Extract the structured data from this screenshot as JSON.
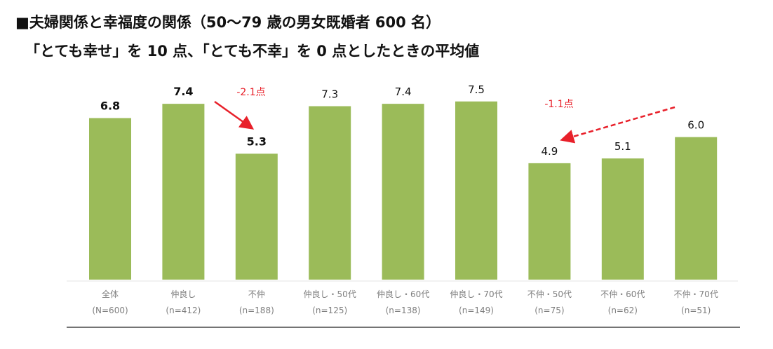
{
  "chart_data": {
    "type": "bar",
    "title": "■夫婦関係と幸福度の関係（50～79 歳の男女既婚者 600 名）",
    "subtitle": "「とても幸せ」を 10 点、「とても不幸」を 0 点としたときの平均値",
    "categories": [
      "全体",
      "仲良し",
      "不仲",
      "仲良し・50代",
      "仲良し・60代",
      "仲良し・70代",
      "不仲・50代",
      "不仲・60代",
      "不仲・70代"
    ],
    "sample_sizes": [
      "(N=600)",
      "(n=412)",
      "(n=188)",
      "(n=125)",
      "(n=138)",
      "(n=149)",
      "(n=75)",
      "(n=62)",
      "(n=51)"
    ],
    "values": [
      6.8,
      7.4,
      5.3,
      7.3,
      7.4,
      7.5,
      4.9,
      5.1,
      6.0
    ],
    "value_labels": [
      "6.8",
      "7.4",
      "5.3",
      "7.3",
      "7.4",
      "7.5",
      "4.9",
      "5.1",
      "6.0"
    ],
    "bold_labels": [
      true,
      true,
      true,
      false,
      false,
      false,
      false,
      false,
      false
    ],
    "ylim": [
      0,
      7.5
    ],
    "xlabel": "",
    "ylabel": "",
    "grid": false,
    "annotations": [
      {
        "text": "-2.1点",
        "from": "仲良し",
        "to": "不仲",
        "style": "solid"
      },
      {
        "text": "-1.1点",
        "from": "不仲・70代",
        "to": "不仲・50代",
        "style": "dashed"
      }
    ],
    "colors": {
      "bar": "#9bbb59",
      "annotation": "#e8202a",
      "text": "#111111",
      "axis_text": "#7f7f7f"
    }
  }
}
